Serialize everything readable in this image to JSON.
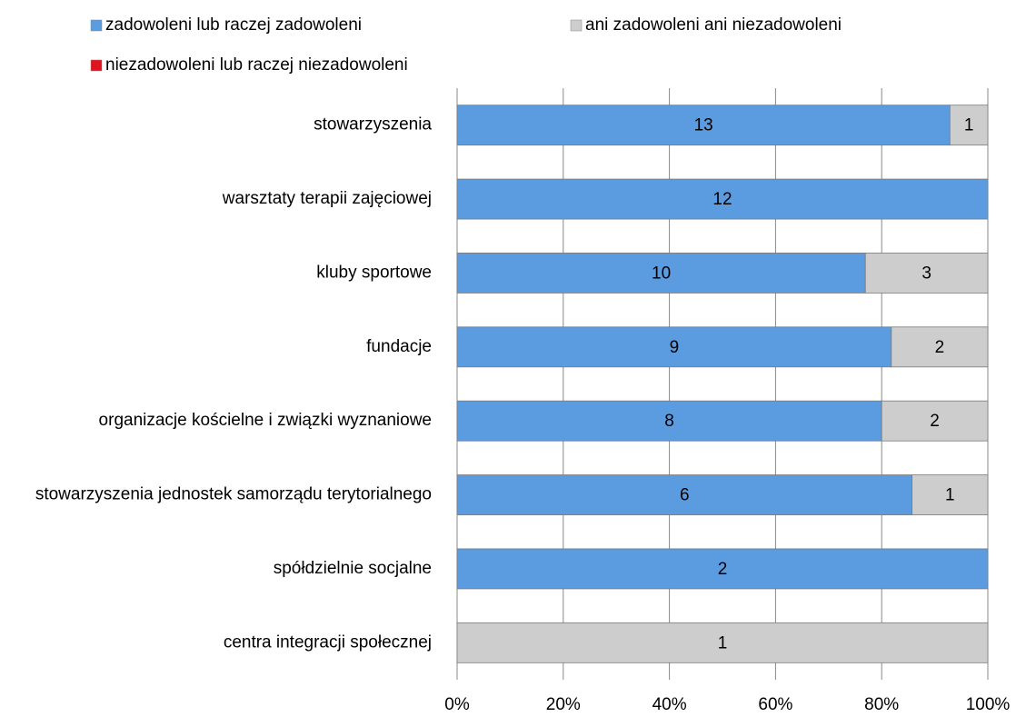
{
  "chart_data": {
    "type": "bar",
    "orientation": "horizontal",
    "stacking": "percent",
    "categories": [
      "stowarzyszenia",
      "warsztaty terapii zajęciowej",
      "kluby sportowe",
      "fundacje",
      "organizacje kościelne i związki wyznaniowe",
      "stowarzyszenia jednostek samorządu terytorialnego",
      "spółdzielnie socjalne",
      "centra integracji społecznej"
    ],
    "series": [
      {
        "name": "zadowoleni lub raczej zadowoleni",
        "color": "#5b9be0",
        "values": [
          13,
          12,
          10,
          9,
          8,
          6,
          2,
          0
        ]
      },
      {
        "name": "ani zadowoleni ani niezadowoleni",
        "color": "#cdcdcd",
        "values": [
          1,
          0,
          3,
          2,
          2,
          1,
          0,
          1
        ]
      },
      {
        "name": "niezadowoleni lub raczej niezadowoleni",
        "color": "#e0141e",
        "values": [
          0,
          0,
          0,
          0,
          0,
          0,
          0,
          0
        ]
      }
    ],
    "xlim": [
      0,
      100
    ],
    "xticks": [
      {
        "value": 0,
        "label": "0%"
      },
      {
        "value": 20,
        "label": "20%"
      },
      {
        "value": 40,
        "label": "40%"
      },
      {
        "value": 60,
        "label": "60%"
      },
      {
        "value": 80,
        "label": "80%"
      },
      {
        "value": 100,
        "label": "100%"
      }
    ],
    "grid": true,
    "legend": "top"
  }
}
